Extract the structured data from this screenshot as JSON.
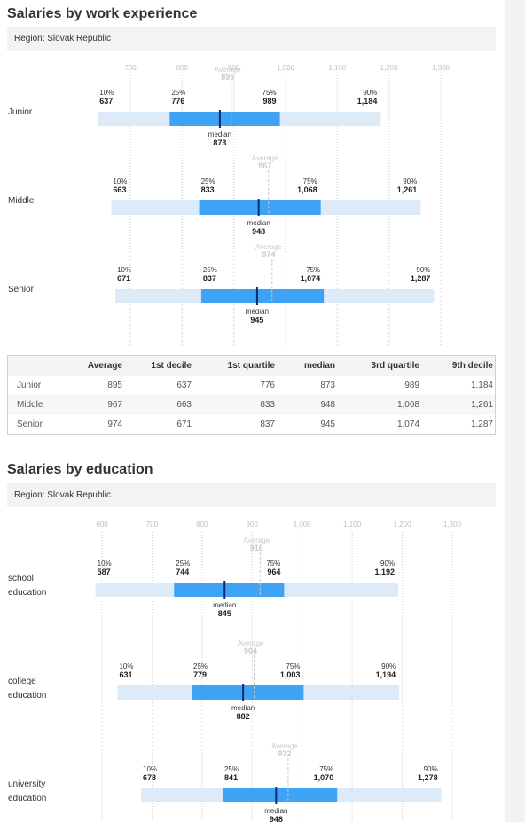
{
  "experience_section": {
    "title": "Salaries by work experience",
    "region": "Region: Slovak Republic"
  },
  "education_section": {
    "title": "Salaries by education",
    "region": "Region: Slovak Republic"
  },
  "table": {
    "headers": [
      "",
      "Average",
      "1st decile",
      "1st quartile",
      "median",
      "3rd quartile",
      "9th decile"
    ],
    "rows": [
      [
        "Junior",
        "895",
        "637",
        "776",
        "873",
        "989",
        "1,184"
      ],
      [
        "Middle",
        "967",
        "663",
        "833",
        "948",
        "1,068",
        "1,261"
      ],
      [
        "Senior",
        "974",
        "671",
        "837",
        "945",
        "1,074",
        "1,287"
      ]
    ]
  },
  "labels": {
    "p10": "10%",
    "p25": "25%",
    "p75": "75%",
    "p90": "90%",
    "median": "median",
    "average": "Average"
  },
  "colors": {
    "range_10_90": "#dcebf7",
    "range_25_75": "#3fa3f5",
    "median_line": "#0b2a6b",
    "average_line": "#c8c8c8",
    "gridline": "#c8c8c8",
    "tick_text": "#c0c0c0",
    "average_text": "#c8c8c8"
  },
  "chart_data": [
    {
      "type": "box",
      "title": "Salaries by work experience",
      "x_ticks": [
        "700",
        "800",
        "900",
        "1,000",
        "1,100",
        "1,200",
        "1,300"
      ],
      "x_tick_values": [
        700,
        800,
        900,
        1000,
        1100,
        1200,
        1300
      ],
      "categories": [
        {
          "label": [
            "Junior"
          ],
          "p10": 637,
          "p25": 776,
          "median": 873,
          "p75": 989,
          "p90": 1184,
          "average": 895
        },
        {
          "label": [
            "Middle"
          ],
          "p10": 663,
          "p25": 833,
          "median": 948,
          "p75": 1068,
          "p90": 1261,
          "average": 967
        },
        {
          "label": [
            "Senior"
          ],
          "p10": 671,
          "p25": 837,
          "median": 945,
          "p75": 1074,
          "p90": 1287,
          "average": 974
        }
      ]
    },
    {
      "type": "box",
      "title": "Salaries by education",
      "x_ticks": [
        "600",
        "700",
        "800",
        "900",
        "1,000",
        "1,100",
        "1,200",
        "1,300"
      ],
      "x_tick_values": [
        600,
        700,
        800,
        900,
        1000,
        1100,
        1200,
        1300
      ],
      "categories": [
        {
          "label": [
            "school",
            "education"
          ],
          "p10": 587,
          "p25": 744,
          "median": 845,
          "p75": 964,
          "p90": 1192,
          "average": 916
        },
        {
          "label": [
            "college",
            "education"
          ],
          "p10": 631,
          "p25": 779,
          "median": 882,
          "p75": 1003,
          "p90": 1194,
          "average": 904
        },
        {
          "label": [
            "university",
            "education"
          ],
          "p10": 678,
          "p25": 841,
          "median": 948,
          "p75": 1070,
          "p90": 1278,
          "average": 972
        }
      ]
    }
  ]
}
